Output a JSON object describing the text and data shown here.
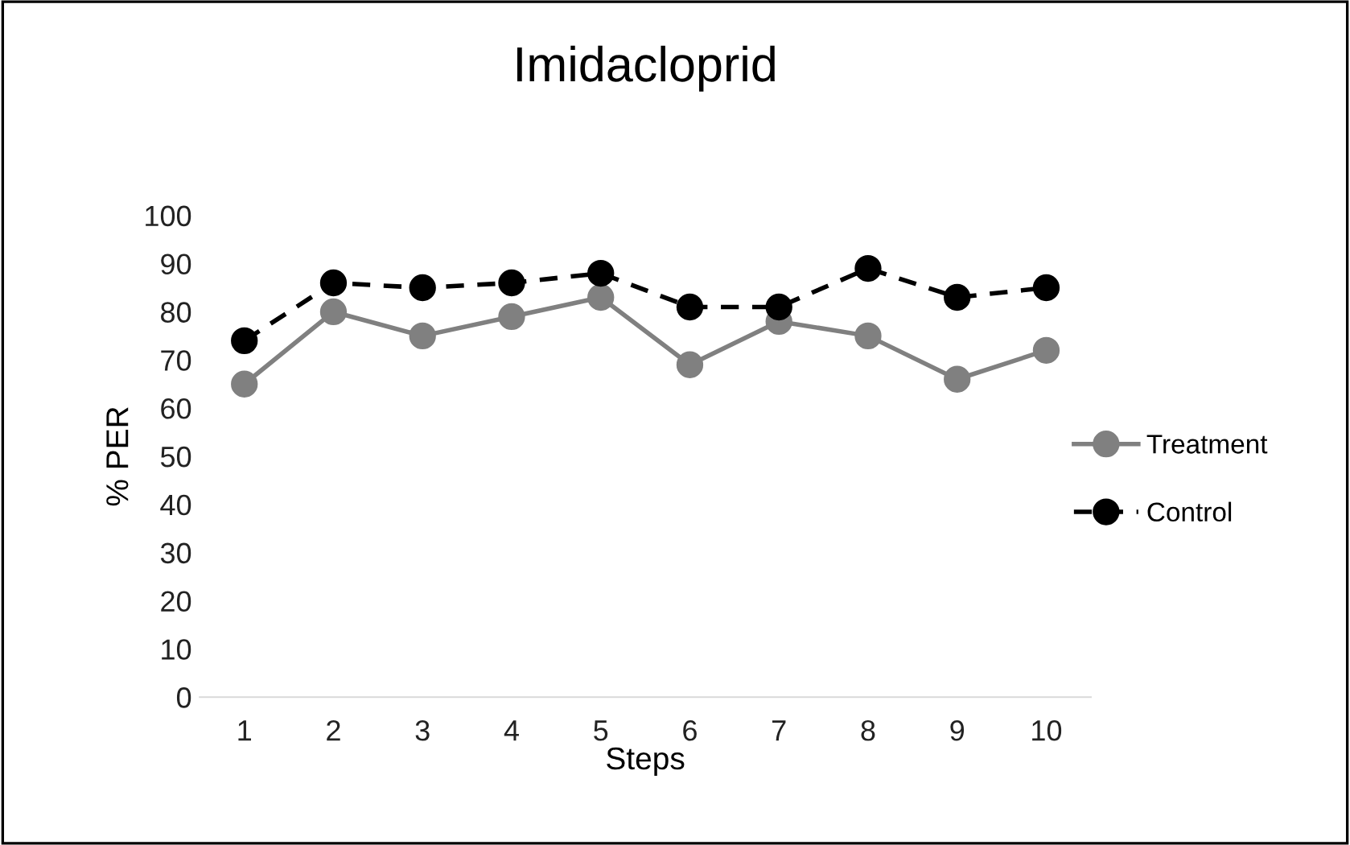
{
  "chart_data": {
    "type": "line",
    "title": "Imidacloprid",
    "xlabel": "Steps",
    "ylabel": "% PER",
    "categories": [
      "1",
      "2",
      "3",
      "4",
      "5",
      "6",
      "7",
      "8",
      "9",
      "10"
    ],
    "series": [
      {
        "name": "Treatment",
        "color": "#808080",
        "line_style": "solid",
        "values": [
          65,
          80,
          75,
          79,
          83,
          69,
          78,
          75,
          66,
          72
        ]
      },
      {
        "name": "Control",
        "color": "#000000",
        "line_style": "dashed",
        "values": [
          74,
          86,
          85,
          86,
          88,
          81,
          81,
          89,
          83,
          85
        ]
      }
    ],
    "ylim": [
      0,
      100
    ],
    "yticks": [
      0,
      10,
      20,
      30,
      40,
      50,
      60,
      70,
      80,
      90,
      100
    ],
    "marker": "circle",
    "grid": false,
    "legend": "right"
  }
}
